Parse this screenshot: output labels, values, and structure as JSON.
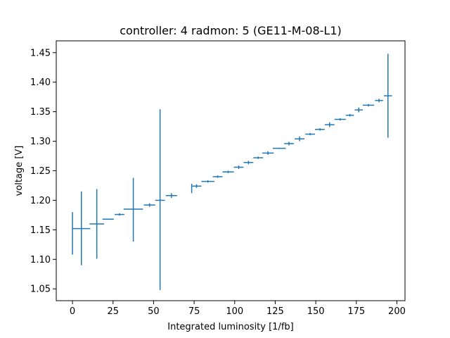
{
  "chart_data": {
    "type": "scatter",
    "style": "errorbar",
    "title": "controller: 4 radmon: 5 (GE11-M-08-L1)",
    "xlabel": "Integrated luminosity [1/fb]",
    "ylabel": "voltage [V]",
    "xlim": [
      -10,
      205
    ],
    "ylim": [
      1.03,
      1.47
    ],
    "xticks": [
      0,
      25,
      50,
      75,
      100,
      125,
      150,
      175,
      200
    ],
    "yticks": [
      1.05,
      1.1,
      1.15,
      1.2,
      1.25,
      1.3,
      1.35,
      1.4,
      1.45
    ],
    "ytick_labels": [
      "1.05",
      "1.10",
      "1.15",
      "1.20",
      "1.25",
      "1.30",
      "1.35",
      "1.40",
      "1.45"
    ],
    "grid": false,
    "color": "#1f77b4",
    "points": [
      {
        "x": 0.0,
        "y": 1.16,
        "xerr": 0.0,
        "yerr_low": 0.052,
        "yerr_high": 0.02
      },
      {
        "x": 5.5,
        "y": 1.152,
        "xerr": 5.5,
        "yerr_low": 0.062,
        "yerr_high": 0.063
      },
      {
        "x": 15.0,
        "y": 1.16,
        "xerr": 4.5,
        "yerr_low": 0.059,
        "yerr_high": 0.059
      },
      {
        "x": 22.0,
        "y": 1.168,
        "xerr": 3.5,
        "yerr_low": 0.001,
        "yerr_high": 0.001
      },
      {
        "x": 29.0,
        "y": 1.176,
        "xerr": 3.0,
        "yerr_low": 0.002,
        "yerr_high": 0.002
      },
      {
        "x": 37.5,
        "y": 1.185,
        "xerr": 6.0,
        "yerr_low": 0.055,
        "yerr_high": 0.053
      },
      {
        "x": 47.5,
        "y": 1.192,
        "xerr": 3.5,
        "yerr_low": 0.003,
        "yerr_high": 0.003
      },
      {
        "x": 54.0,
        "y": 1.2,
        "xerr": 3.0,
        "yerr_low": 0.152,
        "yerr_high": 0.154
      },
      {
        "x": 61.0,
        "y": 1.208,
        "xerr": 3.5,
        "yerr_low": 0.004,
        "yerr_high": 0.004
      },
      {
        "x": 73.5,
        "y": 1.22,
        "xerr": 0.0,
        "yerr_low": 0.008,
        "yerr_high": 0.008
      },
      {
        "x": 76.5,
        "y": 1.224,
        "xerr": 3.0,
        "yerr_low": 0.003,
        "yerr_high": 0.003
      },
      {
        "x": 83.5,
        "y": 1.232,
        "xerr": 4.0,
        "yerr_low": 0.002,
        "yerr_high": 0.002
      },
      {
        "x": 89.5,
        "y": 1.24,
        "xerr": 3.0,
        "yerr_low": 0.002,
        "yerr_high": 0.002
      },
      {
        "x": 96.0,
        "y": 1.248,
        "xerr": 3.5,
        "yerr_low": 0.002,
        "yerr_high": 0.002
      },
      {
        "x": 102.5,
        "y": 1.256,
        "xerr": 3.0,
        "yerr_low": 0.003,
        "yerr_high": 0.003
      },
      {
        "x": 108.5,
        "y": 1.264,
        "xerr": 3.0,
        "yerr_low": 0.003,
        "yerr_high": 0.003
      },
      {
        "x": 114.5,
        "y": 1.272,
        "xerr": 3.0,
        "yerr_low": 0.002,
        "yerr_high": 0.002
      },
      {
        "x": 120.5,
        "y": 1.28,
        "xerr": 3.5,
        "yerr_low": 0.003,
        "yerr_high": 0.003
      },
      {
        "x": 127.5,
        "y": 1.288,
        "xerr": 4.0,
        "yerr_low": 0.001,
        "yerr_high": 0.001
      },
      {
        "x": 133.5,
        "y": 1.296,
        "xerr": 3.0,
        "yerr_low": 0.003,
        "yerr_high": 0.003
      },
      {
        "x": 140.0,
        "y": 1.304,
        "xerr": 3.0,
        "yerr_low": 0.004,
        "yerr_high": 0.004
      },
      {
        "x": 146.5,
        "y": 1.312,
        "xerr": 3.0,
        "yerr_low": 0.002,
        "yerr_high": 0.002
      },
      {
        "x": 152.5,
        "y": 1.32,
        "xerr": 3.0,
        "yerr_low": 0.002,
        "yerr_high": 0.002
      },
      {
        "x": 158.5,
        "y": 1.328,
        "xerr": 3.0,
        "yerr_low": 0.004,
        "yerr_high": 0.004
      },
      {
        "x": 165.0,
        "y": 1.337,
        "xerr": 3.5,
        "yerr_low": 0.002,
        "yerr_high": 0.002
      },
      {
        "x": 171.0,
        "y": 1.344,
        "xerr": 2.5,
        "yerr_low": 0.002,
        "yerr_high": 0.002
      },
      {
        "x": 176.5,
        "y": 1.353,
        "xerr": 2.5,
        "yerr_low": 0.004,
        "yerr_high": 0.004
      },
      {
        "x": 182.5,
        "y": 1.361,
        "xerr": 3.5,
        "yerr_low": 0.002,
        "yerr_high": 0.002
      },
      {
        "x": 189.0,
        "y": 1.369,
        "xerr": 2.5,
        "yerr_low": 0.003,
        "yerr_high": 0.003
      },
      {
        "x": 194.5,
        "y": 1.377,
        "xerr": 2.5,
        "yerr_low": 0.071,
        "yerr_high": 0.071
      }
    ]
  }
}
